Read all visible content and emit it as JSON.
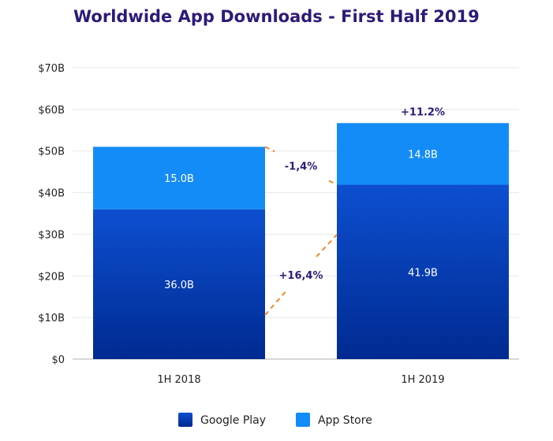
{
  "chart_data": {
    "type": "bar",
    "stacked": true,
    "title": "Worldwide App Downloads - First Half 2019",
    "categories": [
      "1H 2018",
      "1H 2019"
    ],
    "series": [
      {
        "name": "Google Play",
        "values": [
          36.0,
          41.9
        ],
        "labels": [
          "36.0B",
          "41.9B"
        ],
        "color": "#0a3fbd"
      },
      {
        "name": "App Store",
        "values": [
          15.0,
          14.8
        ],
        "labels": [
          "15.0B",
          "14.8B"
        ],
        "color": "#148cf7"
      }
    ],
    "ylim": [
      0,
      70
    ],
    "yticks": [
      0,
      10,
      20,
      30,
      40,
      50,
      60,
      70
    ],
    "ytick_labels": [
      "$0",
      "$10B",
      "$20B",
      "$30B",
      "$40B",
      "$50B",
      "$60B",
      "$70B"
    ],
    "grid": true,
    "legend": "bottom",
    "annotations": {
      "total_growth": "+11.2%",
      "app_store_change": "-1,4%",
      "google_play_change": "+16,4%"
    },
    "colors": {
      "title": "#2e1a78",
      "annotation": "#2e1a78",
      "connector": "#f08a24",
      "grid": "#e8e8e8",
      "axis": "#b0b0b0",
      "google_play_dark": "#002a91",
      "google_play_light": "#0d4fd0"
    }
  }
}
